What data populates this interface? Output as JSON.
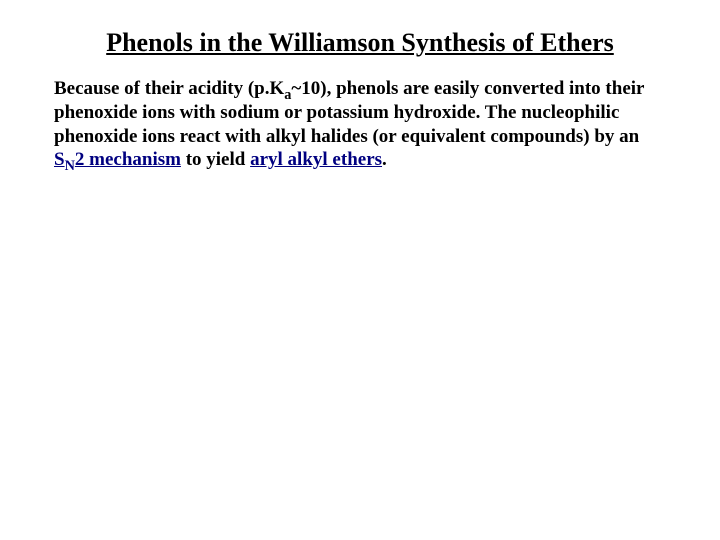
{
  "title": "Phenols in the Williamson Synthesis of Ethers",
  "paragraph": {
    "seg1": "Because of their acidity (p.K",
    "sub1": "a",
    "seg2": "~10), phenols are easily converted into their phenoxide ions with sodium or potassium hydroxide. The nucleophilic phenoxide ions react with alkyl halides (or equivalent compounds) by an ",
    "sn2_s": "S",
    "sn2_n": "N",
    "sn2_rest": "2 mechanism",
    "seg3": " to yield ",
    "aryl": "aryl alkyl ethers",
    "seg4": "."
  },
  "colors": {
    "background": "#ffffff",
    "text": "#000000",
    "link": "#000080"
  },
  "typography": {
    "title_fontsize": 26,
    "body_fontsize": 19,
    "font_family": "Times New Roman",
    "bold": true
  }
}
